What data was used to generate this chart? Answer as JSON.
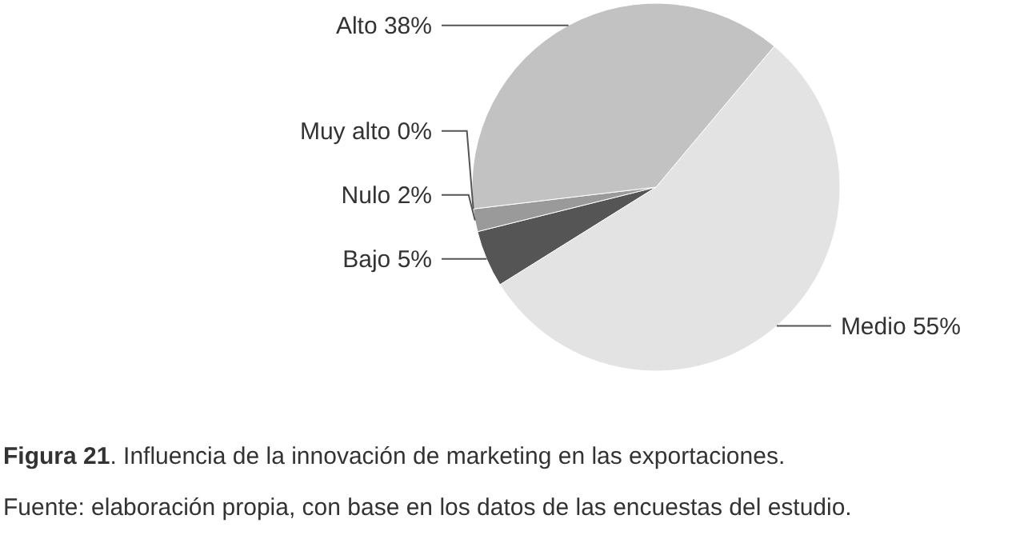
{
  "chart_data": {
    "type": "pie",
    "title": "Figura 21. Influencia de la innovación de marketing en las exportaciones.",
    "annotations": [
      "Fuente: elaboración propia, con base en los datos de las encuestas del estudio."
    ],
    "categories": [
      "Medio",
      "Bajo",
      "Nulo",
      "Muy alto",
      "Alto"
    ],
    "values": [
      55,
      5,
      2,
      0,
      38
    ],
    "value_labels": [
      "55%",
      "5%",
      "2%",
      "0%",
      "38%"
    ],
    "colors": [
      "#e3e3e3",
      "#555555",
      "#9a9a9a",
      "#777777",
      "#c2c2c2"
    ]
  }
}
